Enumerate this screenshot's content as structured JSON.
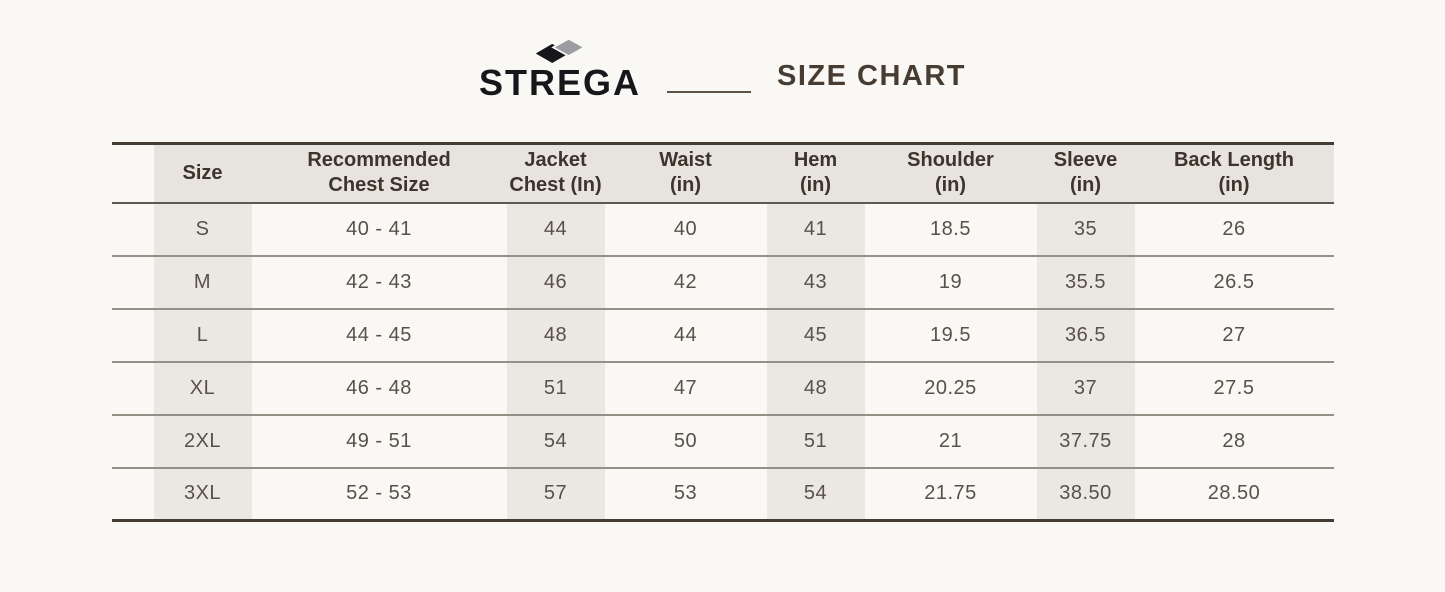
{
  "brand": {
    "name": "STREGA",
    "icon": "double-diamond-icon",
    "logo_black": "#16171b",
    "logo_gray": "#9b9da2"
  },
  "title": "SIZE CHART",
  "chart_data": {
    "type": "table",
    "title": "SIZE CHART",
    "columns": [
      "Size",
      "Recommended\nChest Size",
      "Jacket\nChest (In)",
      "Waist\n(in)",
      "Hem\n(in)",
      "Shoulder\n(in)",
      "Sleeve\n(in)",
      "Back Length\n(in)"
    ],
    "rows": [
      [
        "S",
        "40 - 41",
        "44",
        "40",
        "41",
        "18.5",
        "35",
        "26"
      ],
      [
        "M",
        "42 - 43",
        "46",
        "42",
        "43",
        "19",
        "35.5",
        "26.5"
      ],
      [
        "L",
        "44 - 45",
        "48",
        "44",
        "45",
        "19.5",
        "36.5",
        "27"
      ],
      [
        "XL",
        "46 - 48",
        "51",
        "47",
        "48",
        "20.25",
        "37",
        "27.5"
      ],
      [
        "2XL",
        "49 - 51",
        "54",
        "50",
        "51",
        "21",
        "37.75",
        "28"
      ],
      [
        "3XL",
        "52 - 53",
        "57",
        "53",
        "54",
        "21.75",
        "38.50",
        "28.50"
      ]
    ],
    "layout": {
      "striped_columns": [
        "Size",
        "Jacket Chest (In)",
        "Hem (in)",
        "Sleeve (in)"
      ],
      "grid": "horizontal-lines-only"
    }
  },
  "colors": {
    "page_background": "#faf8f4",
    "header_background": "#e7e4df",
    "column_stripe": "#ebe8e3",
    "outer_border": "#453b31",
    "row_line": "#948f87",
    "header_text": "#3d342b",
    "data_text": "#585149",
    "title_text": "#473c31"
  }
}
